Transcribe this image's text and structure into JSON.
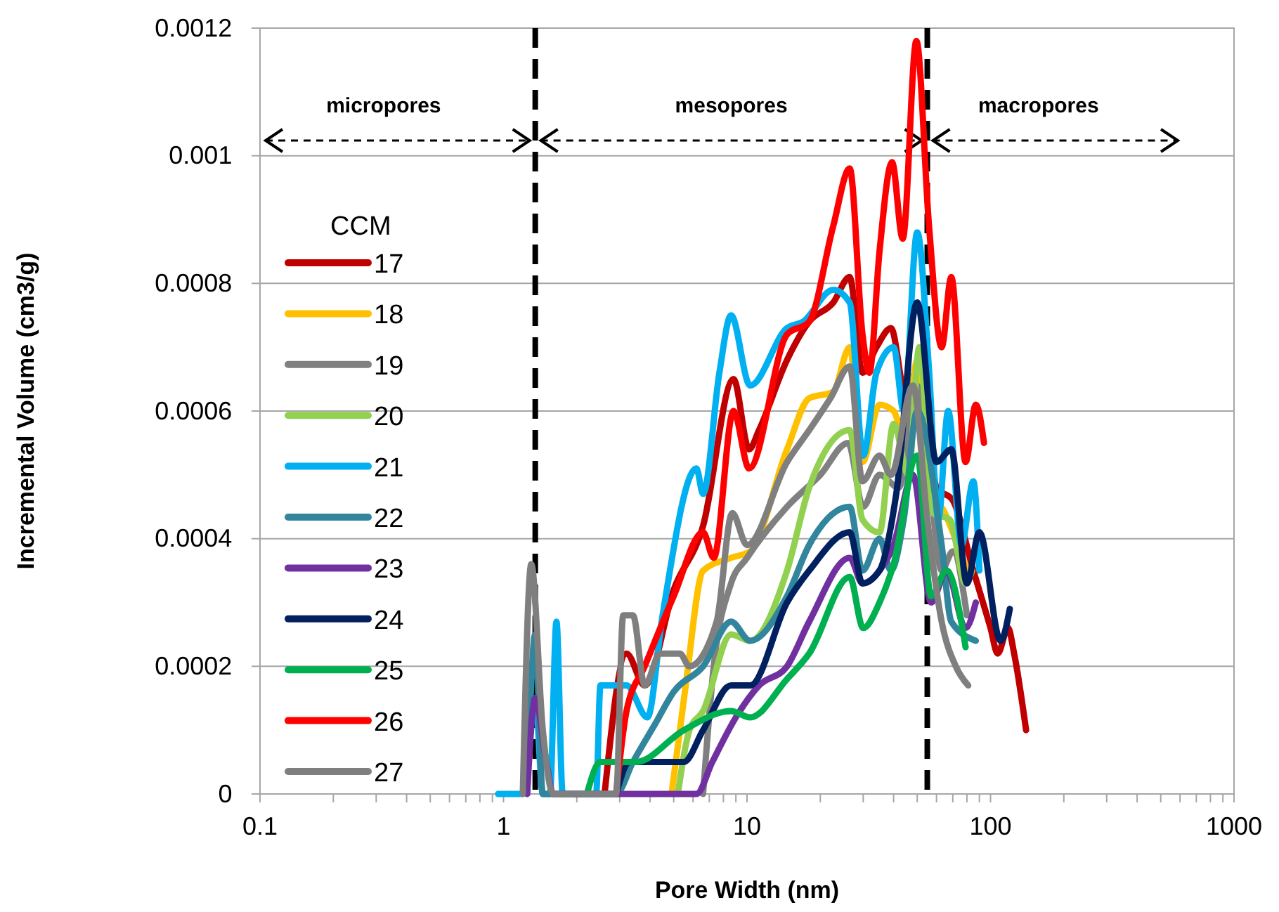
{
  "chart_data": {
    "type": "line",
    "xlabel": "Pore Width (nm)",
    "ylabel": "Incremental  Volume (cm3/g)",
    "legend_title": "CCM",
    "legend": "left",
    "grid": "y",
    "log": "x",
    "line_style": "solid",
    "marker": "none",
    "xlim": [
      0.1,
      1000
    ],
    "ylim": [
      0,
      0.0012
    ],
    "xticks": [
      0.1,
      {
        "value": 0.2,
        "label": null
      },
      {
        "value": 0.3,
        "label": null
      },
      {
        "value": 0.4,
        "label": null
      },
      {
        "value": 0.5,
        "label": null
      },
      {
        "value": 0.6,
        "label": null
      },
      {
        "value": 0.7,
        "label": null
      },
      {
        "value": 0.8,
        "label": null
      },
      {
        "value": 0.9,
        "label": null
      },
      1,
      {
        "value": 2,
        "label": null
      },
      {
        "value": 3,
        "label": null
      },
      {
        "value": 4,
        "label": null
      },
      {
        "value": 5,
        "label": null
      },
      {
        "value": 6,
        "label": null
      },
      {
        "value": 7,
        "label": null
      },
      {
        "value": 8,
        "label": null
      },
      {
        "value": 9,
        "label": null
      },
      10,
      {
        "value": 20,
        "label": null
      },
      {
        "value": 30,
        "label": null
      },
      {
        "value": 40,
        "label": null
      },
      {
        "value": 50,
        "label": null
      },
      {
        "value": 60,
        "label": null
      },
      {
        "value": 70,
        "label": null
      },
      {
        "value": 80,
        "label": null
      },
      {
        "value": 90,
        "label": null
      },
      100,
      {
        "value": 200,
        "label": null
      },
      {
        "value": 300,
        "label": null
      },
      {
        "value": 400,
        "label": null
      },
      {
        "value": 500,
        "label": null
      },
      {
        "value": 600,
        "label": null
      },
      {
        "value": 700,
        "label": null
      },
      {
        "value": 800,
        "label": null
      },
      {
        "value": 900,
        "label": null
      },
      1000
    ],
    "yticks": [
      0,
      0.0002,
      0.0004,
      0.0006,
      0.0008,
      0.001,
      0.0012
    ],
    "ref_lines": [
      {
        "axis": "x",
        "value": 1.35,
        "line_style": "dashed",
        "color": "#000000"
      },
      {
        "axis": "x",
        "value": 55,
        "line_style": "dashed",
        "color": "#000000"
      }
    ],
    "annotations": [
      "micropores",
      "mesopores",
      "macropores"
    ],
    "series": [
      {
        "name": "17",
        "color": "#c00000",
        "x": [
          2.6,
          3.2,
          3.8,
          5,
          6.6,
          8.8,
          10.2,
          11.2,
          14.6,
          18,
          22.6,
          26.4,
          29.8,
          34,
          39,
          45,
          52,
          60,
          70,
          85,
          100,
          107,
          118,
          125,
          140
        ],
        "values": [
          0,
          0.00022,
          0.00017,
          0.00032,
          0.00042,
          0.00065,
          0.00054,
          0.00057,
          0.00068,
          0.00074,
          0.00077,
          0.00081,
          0.00066,
          0.0007,
          0.00073,
          0.00062,
          0.00069,
          0.00048,
          0.00046,
          0.00035,
          0.00026,
          0.00022,
          0.00026,
          0.00022,
          0.0001
        ]
      },
      {
        "name": "18",
        "color": "#ffc000",
        "x": [
          4.9,
          5.6,
          6.6,
          8.6,
          10.3,
          14.6,
          18,
          22.6,
          26.4,
          29.8,
          35,
          40,
          45,
          50,
          57,
          65,
          75,
          82
        ],
        "values": [
          0,
          0.00017,
          0.00035,
          0.00037,
          0.00038,
          0.00054,
          0.00062,
          0.00063,
          0.0007,
          0.00052,
          0.00061,
          0.0006,
          0.00055,
          0.00068,
          0.00048,
          0.00044,
          0.00038,
          0.00034
        ]
      },
      {
        "name": "19",
        "color": "#808080",
        "x": [
          6.6,
          7.3,
          8.6,
          10,
          14.6,
          20,
          26,
          30,
          35,
          42,
          50,
          56,
          63,
          70,
          80
        ],
        "values": [
          0,
          0.0002,
          0.00033,
          0.00037,
          0.00045,
          0.0005,
          0.00055,
          0.00045,
          0.0005,
          0.00048,
          0.00064,
          0.0005,
          0.00035,
          0.00038,
          0.00028
        ]
      },
      {
        "name": "20",
        "color": "#92d050",
        "x": [
          5.2,
          5.8,
          6.6,
          8.6,
          10.3,
          14.6,
          18,
          26.4,
          29.8,
          35,
          40,
          46,
          51,
          58,
          68,
          79,
          84
        ],
        "values": [
          0,
          0.0001,
          0.00013,
          0.00025,
          0.00024,
          0.00035,
          0.00048,
          0.00057,
          0.00043,
          0.00041,
          0.00058,
          0.0005,
          0.0007,
          0.00044,
          0.00043,
          0.00033,
          0.00035
        ]
      },
      {
        "name": "21",
        "color": "#00b0f0",
        "x": [
          0.95,
          1.2,
          1.35,
          1.45,
          1.55,
          1.65,
          1.75,
          2.4,
          2.5,
          3.2,
          3.9,
          4.5,
          6.2,
          6.6,
          7.7,
          8.6,
          10.3,
          14.6,
          17,
          22.6,
          26.4,
          30,
          34,
          40,
          44,
          50,
          56,
          61,
          67,
          76,
          85,
          90
        ],
        "values": [
          0,
          0,
          0.00015,
          0,
          0,
          0.00027,
          0,
          0,
          0.00017,
          0.00017,
          0.00012,
          0.00028,
          0.00051,
          0.00047,
          0.00066,
          0.00075,
          0.00064,
          0.00073,
          0.00074,
          0.00079,
          0.00077,
          0.00053,
          0.00066,
          0.0007,
          0.0006,
          0.00088,
          0.00066,
          0.00043,
          0.0006,
          0.00039,
          0.00049,
          0.00035
        ]
      },
      {
        "name": "22",
        "color": "#31859c",
        "x": [
          1.25,
          1.35,
          1.45,
          2.9,
          3.4,
          4.2,
          5,
          6.6,
          8.6,
          10.3,
          14.6,
          18,
          26.4,
          29.8,
          35,
          39,
          44,
          50,
          63,
          69,
          87
        ],
        "values": [
          0,
          0.00025,
          0,
          0,
          5e-05,
          0.00011,
          0.00016,
          0.0002,
          0.00027,
          0.00024,
          0.00031,
          0.00039,
          0.00045,
          0.00035,
          0.0004,
          0.00035,
          0.00043,
          0.0006,
          0.00039,
          0.00027,
          0.00024
        ]
      },
      {
        "name": "23",
        "color": "#7030a0",
        "x": [
          1.25,
          1.35,
          1.5,
          1.6,
          5.5,
          6.2,
          7.2,
          9,
          11.2,
          14.6,
          18,
          26.4,
          29.8,
          35,
          40,
          48,
          57,
          66,
          79,
          87
        ],
        "values": [
          0,
          0.00015,
          5e-05,
          0,
          0,
          0,
          5e-05,
          0.00012,
          0.00017,
          0.0002,
          0.00027,
          0.00037,
          0.00033,
          0.00035,
          0.00039,
          0.0005,
          0.0003,
          0.00035,
          0.00026,
          0.0003
        ]
      },
      {
        "name": "24",
        "color": "#002060",
        "x": [
          2.9,
          3.3,
          3.9,
          5.5,
          6.6,
          8.6,
          10.3,
          14.6,
          18,
          26.4,
          29.8,
          35,
          41,
          50,
          60,
          69,
          80,
          90,
          110,
          120
        ],
        "values": [
          0,
          5e-05,
          5e-05,
          5e-05,
          0.0001,
          0.00017,
          0.00017,
          0.0003,
          0.00035,
          0.00041,
          0.00033,
          0.00035,
          0.00047,
          0.00077,
          0.00052,
          0.00054,
          0.00033,
          0.00041,
          0.00024,
          0.00029
        ]
      },
      {
        "name": "25",
        "color": "#00b050",
        "x": [
          2.2,
          2.5,
          2.9,
          3.5,
          5.5,
          8.6,
          10.3,
          14.6,
          18,
          26.4,
          30,
          35,
          40,
          50,
          57,
          66,
          79
        ],
        "values": [
          0,
          5e-05,
          5e-05,
          5e-05,
          0.0001,
          0.00013,
          0.00012,
          0.00018,
          0.00022,
          0.00034,
          0.00026,
          0.0003,
          0.00036,
          0.00053,
          0.00031,
          0.00035,
          0.00023
        ]
      },
      {
        "name": "26",
        "color": "#ff0000",
        "x": [
          2.9,
          3.2,
          3.8,
          5,
          6.6,
          7.3,
          8.8,
          10.2,
          14.6,
          18,
          22.6,
          26.4,
          29.8,
          31.8,
          35,
          39.4,
          43.6,
          49.6,
          55.9,
          63,
          69,
          79,
          87,
          94
        ],
        "values": [
          0,
          0.00013,
          0.0002,
          0.00031,
          0.00041,
          0.00037,
          0.0006,
          0.00051,
          0.00072,
          0.00074,
          0.00089,
          0.00098,
          0.00072,
          0.00066,
          0.00085,
          0.00099,
          0.00087,
          0.00118,
          0.00089,
          0.0007,
          0.00081,
          0.00052,
          0.00061,
          0.00055
        ]
      },
      {
        "name": "27",
        "color": "#7f7f7f",
        "x": [
          1.2,
          1.3,
          1.45,
          1.6,
          2.9,
          3.1,
          3.4,
          3.8,
          4.4,
          5.3,
          5.8,
          7.5,
          8.7,
          10,
          14.6,
          18,
          22,
          26.4,
          29.8,
          35,
          39,
          48,
          55,
          63,
          72,
          81
        ],
        "values": [
          0,
          0.00036,
          0.0001,
          0,
          0,
          0.00028,
          0.00028,
          0.00017,
          0.00022,
          0.00022,
          0.0002,
          0.00027,
          0.00044,
          0.00039,
          0.00052,
          0.00057,
          0.00062,
          0.00067,
          0.00049,
          0.00053,
          0.0005,
          0.00064,
          0.00043,
          0.00027,
          0.0002,
          0.00017
        ]
      }
    ]
  }
}
